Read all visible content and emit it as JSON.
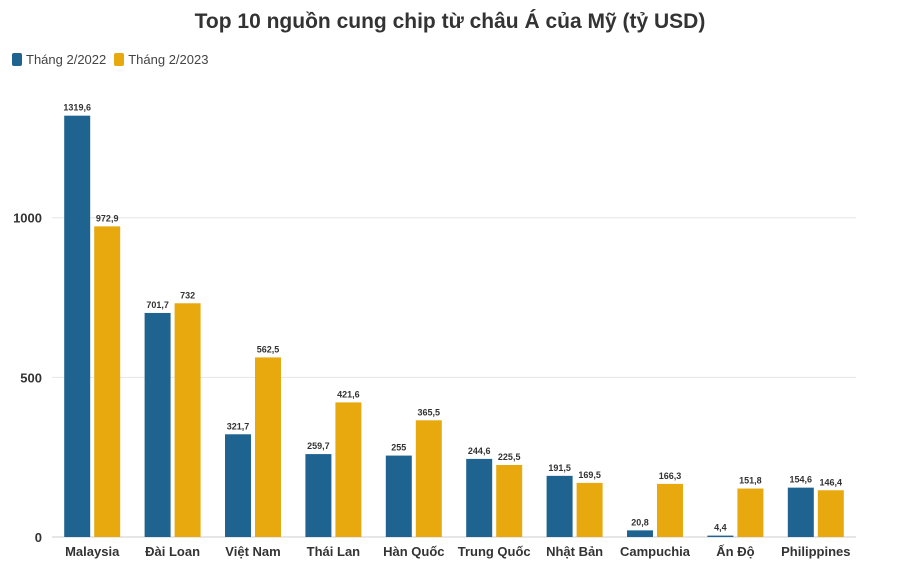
{
  "chart_data": {
    "type": "bar",
    "title": "Top 10 nguồn cung chip từ châu Á của Mỹ (tỷ USD)",
    "xlabel": "",
    "ylabel": "",
    "ylim": [
      0,
      1400
    ],
    "yticks": [
      0,
      500,
      1000
    ],
    "ytick_labels": [
      "0",
      "500",
      "1000"
    ],
    "grid": true,
    "legend_position": "top-left",
    "categories": [
      "Malaysia",
      "Đài Loan",
      "Việt Nam",
      "Thái Lan",
      "Hàn Quốc",
      "Trung Quốc",
      "Nhật Bản",
      "Campuchia",
      "Ấn Độ",
      "Philippines"
    ],
    "series": [
      {
        "name": "Tháng 2/2022",
        "color": "#1f6391",
        "values": [
          1319.6,
          701.7,
          321.7,
          259.7,
          255,
          244.6,
          191.5,
          20.8,
          4.4,
          154.6
        ],
        "labels": [
          "1319,6",
          "701,7",
          "321,7",
          "259,7",
          "255",
          "244,6",
          "191,5",
          "20,8",
          "4,4",
          "154,6"
        ]
      },
      {
        "name": "Tháng 2/2023",
        "color": "#e8a90e",
        "values": [
          972.9,
          732,
          562.5,
          421.6,
          365.5,
          225.5,
          169.5,
          166.3,
          151.8,
          146.4
        ],
        "labels": [
          "972,9",
          "732",
          "562,5",
          "421,6",
          "365,5",
          "225,5",
          "169,5",
          "166,3",
          "151,8",
          "146,4"
        ]
      }
    ]
  }
}
